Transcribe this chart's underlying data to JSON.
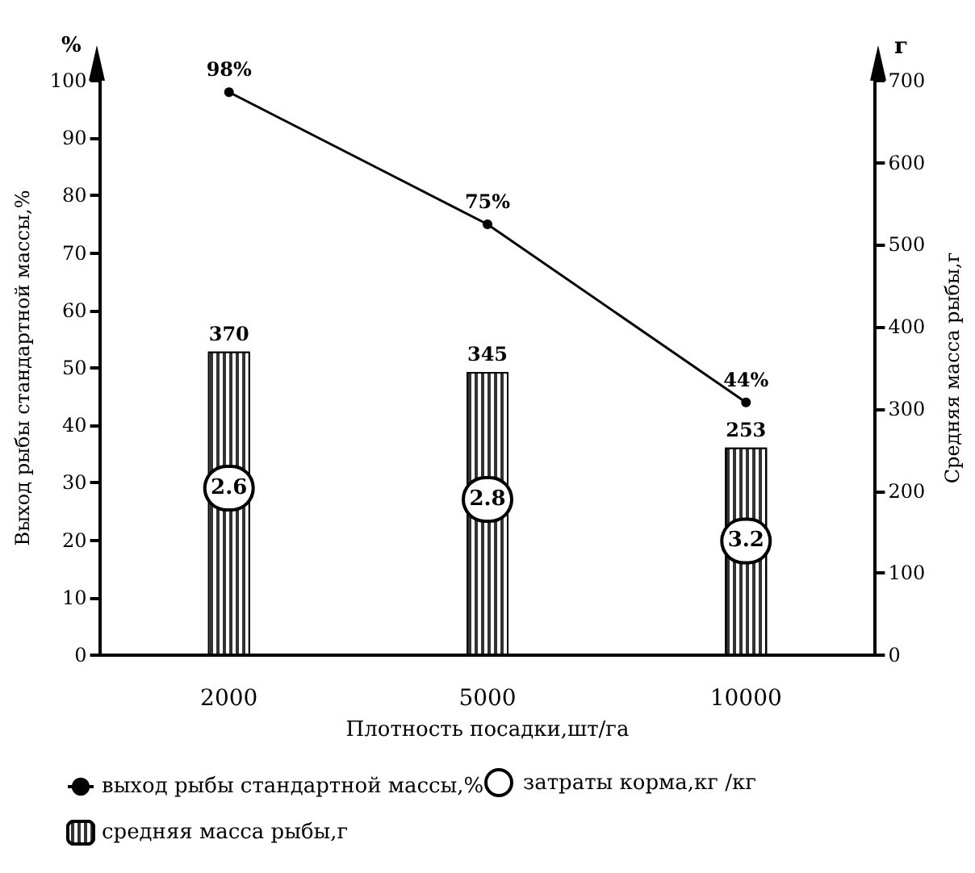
{
  "chart_data": {
    "type": "bar",
    "xlabel": "Плотность посадки,шт/га",
    "ylabel": "Выход рыбы стандартной массы,%",
    "y2label": "Средняя масса рыбы,г",
    "categories": [
      "2000",
      "5000",
      "10000"
    ],
    "series": [
      {
        "name": "средняя масса рыбы,г",
        "axis": "y2",
        "color": "#333333",
        "values": [
          370,
          345,
          253
        ],
        "value_labels": [
          "370",
          "345",
          "253"
        ]
      },
      {
        "name": "выход рыбы стандартной массы,%",
        "type": "line",
        "color": "#000000",
        "values": [
          98,
          75,
          44
        ],
        "value_labels": [
          "98%",
          "75%",
          "44%"
        ]
      }
    ],
    "ylim": [
      0,
      100
    ],
    "yticks": [
      0,
      10,
      20,
      30,
      40,
      50,
      60,
      70,
      80,
      90,
      100
    ],
    "y2lim": [
      0,
      700
    ],
    "y2ticks": [
      0,
      100,
      200,
      300,
      400,
      500,
      600,
      700
    ],
    "annotations": [
      {
        "text": "2.6",
        "x": "2000"
      },
      {
        "text": "2.8",
        "x": "5000"
      },
      {
        "text": "3.2",
        "x": "10000"
      },
      "%",
      "г",
      "затраты корма,кг /кг"
    ],
    "marker": "circle",
    "line_style": "solid",
    "grid": false,
    "legend": "bottom"
  }
}
